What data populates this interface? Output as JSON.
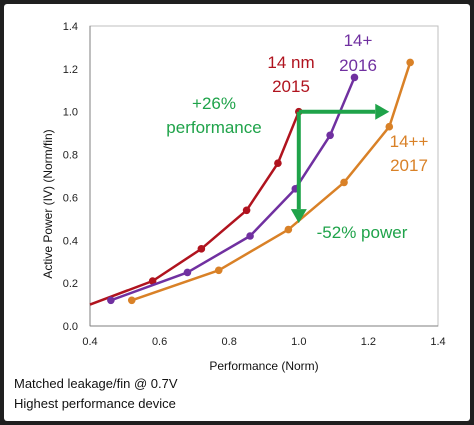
{
  "chart_data": {
    "type": "line",
    "xlabel": "Performance (Norm)",
    "ylabel": "Active Power (IV) (Norm/fin)",
    "xlim": [
      0.4,
      1.4
    ],
    "ylim": [
      0.0,
      1.4
    ],
    "xticks": [
      "0.4",
      "0.6",
      "0.8",
      "1.0",
      "1.2",
      "1.4"
    ],
    "yticks": [
      "0.0",
      "0.2",
      "0.4",
      "0.6",
      "0.8",
      "1.0",
      "1.2",
      "1.4"
    ],
    "grid": false,
    "series": [
      {
        "name": "14 nm 2015",
        "color": "#b0131e",
        "x": [
          0.4,
          0.58,
          0.72,
          0.85,
          0.94,
          1.0
        ],
        "y": [
          0.1,
          0.21,
          0.36,
          0.54,
          0.76,
          1.0
        ]
      },
      {
        "name": "14+ 2016",
        "color": "#7030a0",
        "x": [
          0.46,
          0.68,
          0.86,
          0.99,
          1.09,
          1.16
        ],
        "y": [
          0.12,
          0.25,
          0.42,
          0.64,
          0.89,
          1.16
        ]
      },
      {
        "name": "14++ 2017",
        "color": "#d98127",
        "x": [
          0.52,
          0.77,
          0.97,
          1.13,
          1.26,
          1.32
        ],
        "y": [
          0.12,
          0.26,
          0.45,
          0.67,
          0.93,
          1.23
        ]
      }
    ],
    "annotations": {
      "perf": {
        "text_line1": "+26%",
        "text_line2": "performance",
        "from": [
          1.0,
          1.0
        ],
        "to": [
          1.26,
          1.0
        ],
        "color": "#1fa34a"
      },
      "power": {
        "text": "-52% power",
        "from": [
          1.0,
          1.0
        ],
        "to": [
          1.0,
          0.48
        ],
        "color": "#1fa34a"
      }
    },
    "series_labels": [
      {
        "line1": "14 nm",
        "line2": "2015",
        "color": "#b0131e"
      },
      {
        "line1": "14+",
        "line2": "2016",
        "color": "#7030a0"
      },
      {
        "line1": "14++",
        "line2": "2017",
        "color": "#d98127"
      }
    ]
  },
  "footnotes": [
    "Matched leakage/fin @ 0.7V",
    "Highest performance device"
  ]
}
